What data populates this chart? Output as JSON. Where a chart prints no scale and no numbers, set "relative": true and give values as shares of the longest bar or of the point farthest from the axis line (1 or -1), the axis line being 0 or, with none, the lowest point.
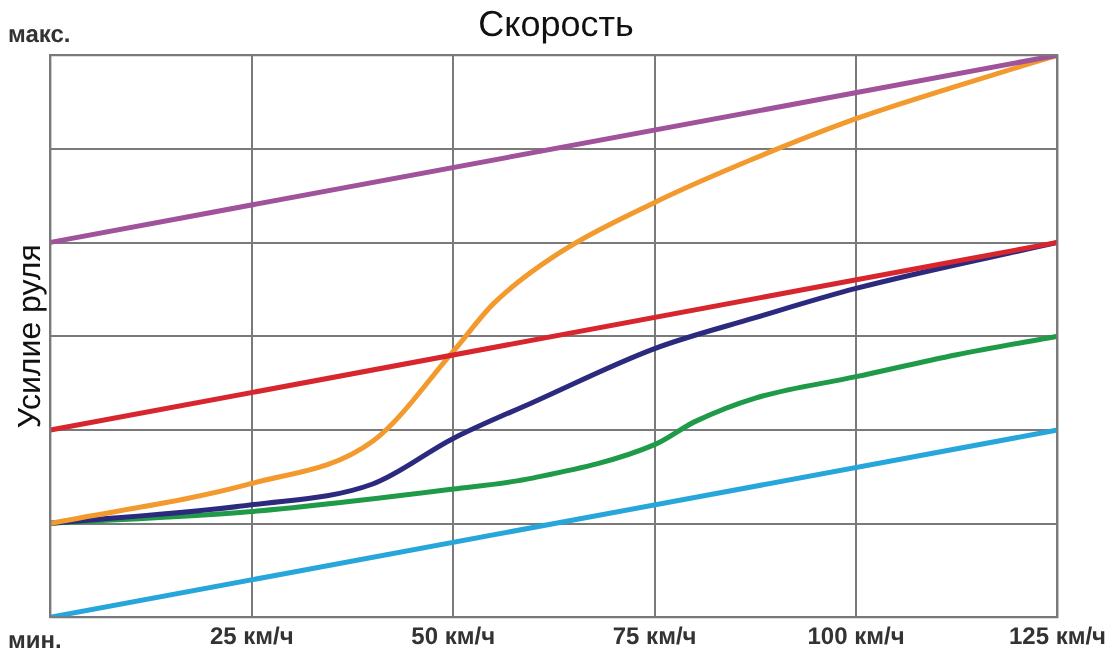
{
  "chart_data": {
    "type": "line",
    "title": "Скорость",
    "ylabel": "Усилие руля",
    "relative": true,
    "annotations": [
      "макс.",
      "мин."
    ],
    "xlim": [
      0,
      125
    ],
    "xticks": [
      {
        "value": 0,
        "label": null
      },
      {
        "value": 25,
        "label": "25 км/ч"
      },
      {
        "value": 50,
        "label": "50 км/ч"
      },
      {
        "value": 75,
        "label": "75 км/ч"
      },
      {
        "value": 100,
        "label": "100 км/ч"
      },
      {
        "value": 125,
        "label": "125 км/ч"
      }
    ],
    "grid": true,
    "marker": "none",
    "line_style": "solid",
    "series": [
      {
        "color": "#a0529a",
        "x": [
          0,
          125
        ],
        "values": [
          0.667,
          1
        ]
      },
      {
        "color": "#d7262e",
        "x": [
          0,
          125
        ],
        "values": [
          0.333,
          0.667
        ]
      },
      {
        "color": "#27a6dc",
        "x": [
          0,
          125
        ],
        "values": [
          0,
          0.333
        ]
      },
      {
        "color": "#f39a2e",
        "x": [
          0,
          25,
          40,
          50,
          55,
          62.5,
          75,
          87.5,
          100,
          112.5,
          125
        ],
        "values": [
          0.167,
          0.238,
          0.313,
          0.473,
          0.558,
          0.642,
          0.738,
          0.817,
          0.887,
          0.945,
          1
        ]
      },
      {
        "color": "#2b2a7e",
        "x": [
          0,
          25,
          40,
          50,
          60,
          75,
          87.5,
          100,
          125
        ],
        "values": [
          0.167,
          0.2,
          0.237,
          0.318,
          0.383,
          0.478,
          0.533,
          0.585,
          0.667
        ]
      },
      {
        "color": "#1e9a48",
        "x": [
          0,
          25,
          50,
          60,
          75,
          80,
          87.5,
          100,
          112.5,
          125
        ],
        "values": [
          0.167,
          0.188,
          0.228,
          0.248,
          0.307,
          0.348,
          0.39,
          0.428,
          0.467,
          0.5
        ]
      }
    ]
  }
}
